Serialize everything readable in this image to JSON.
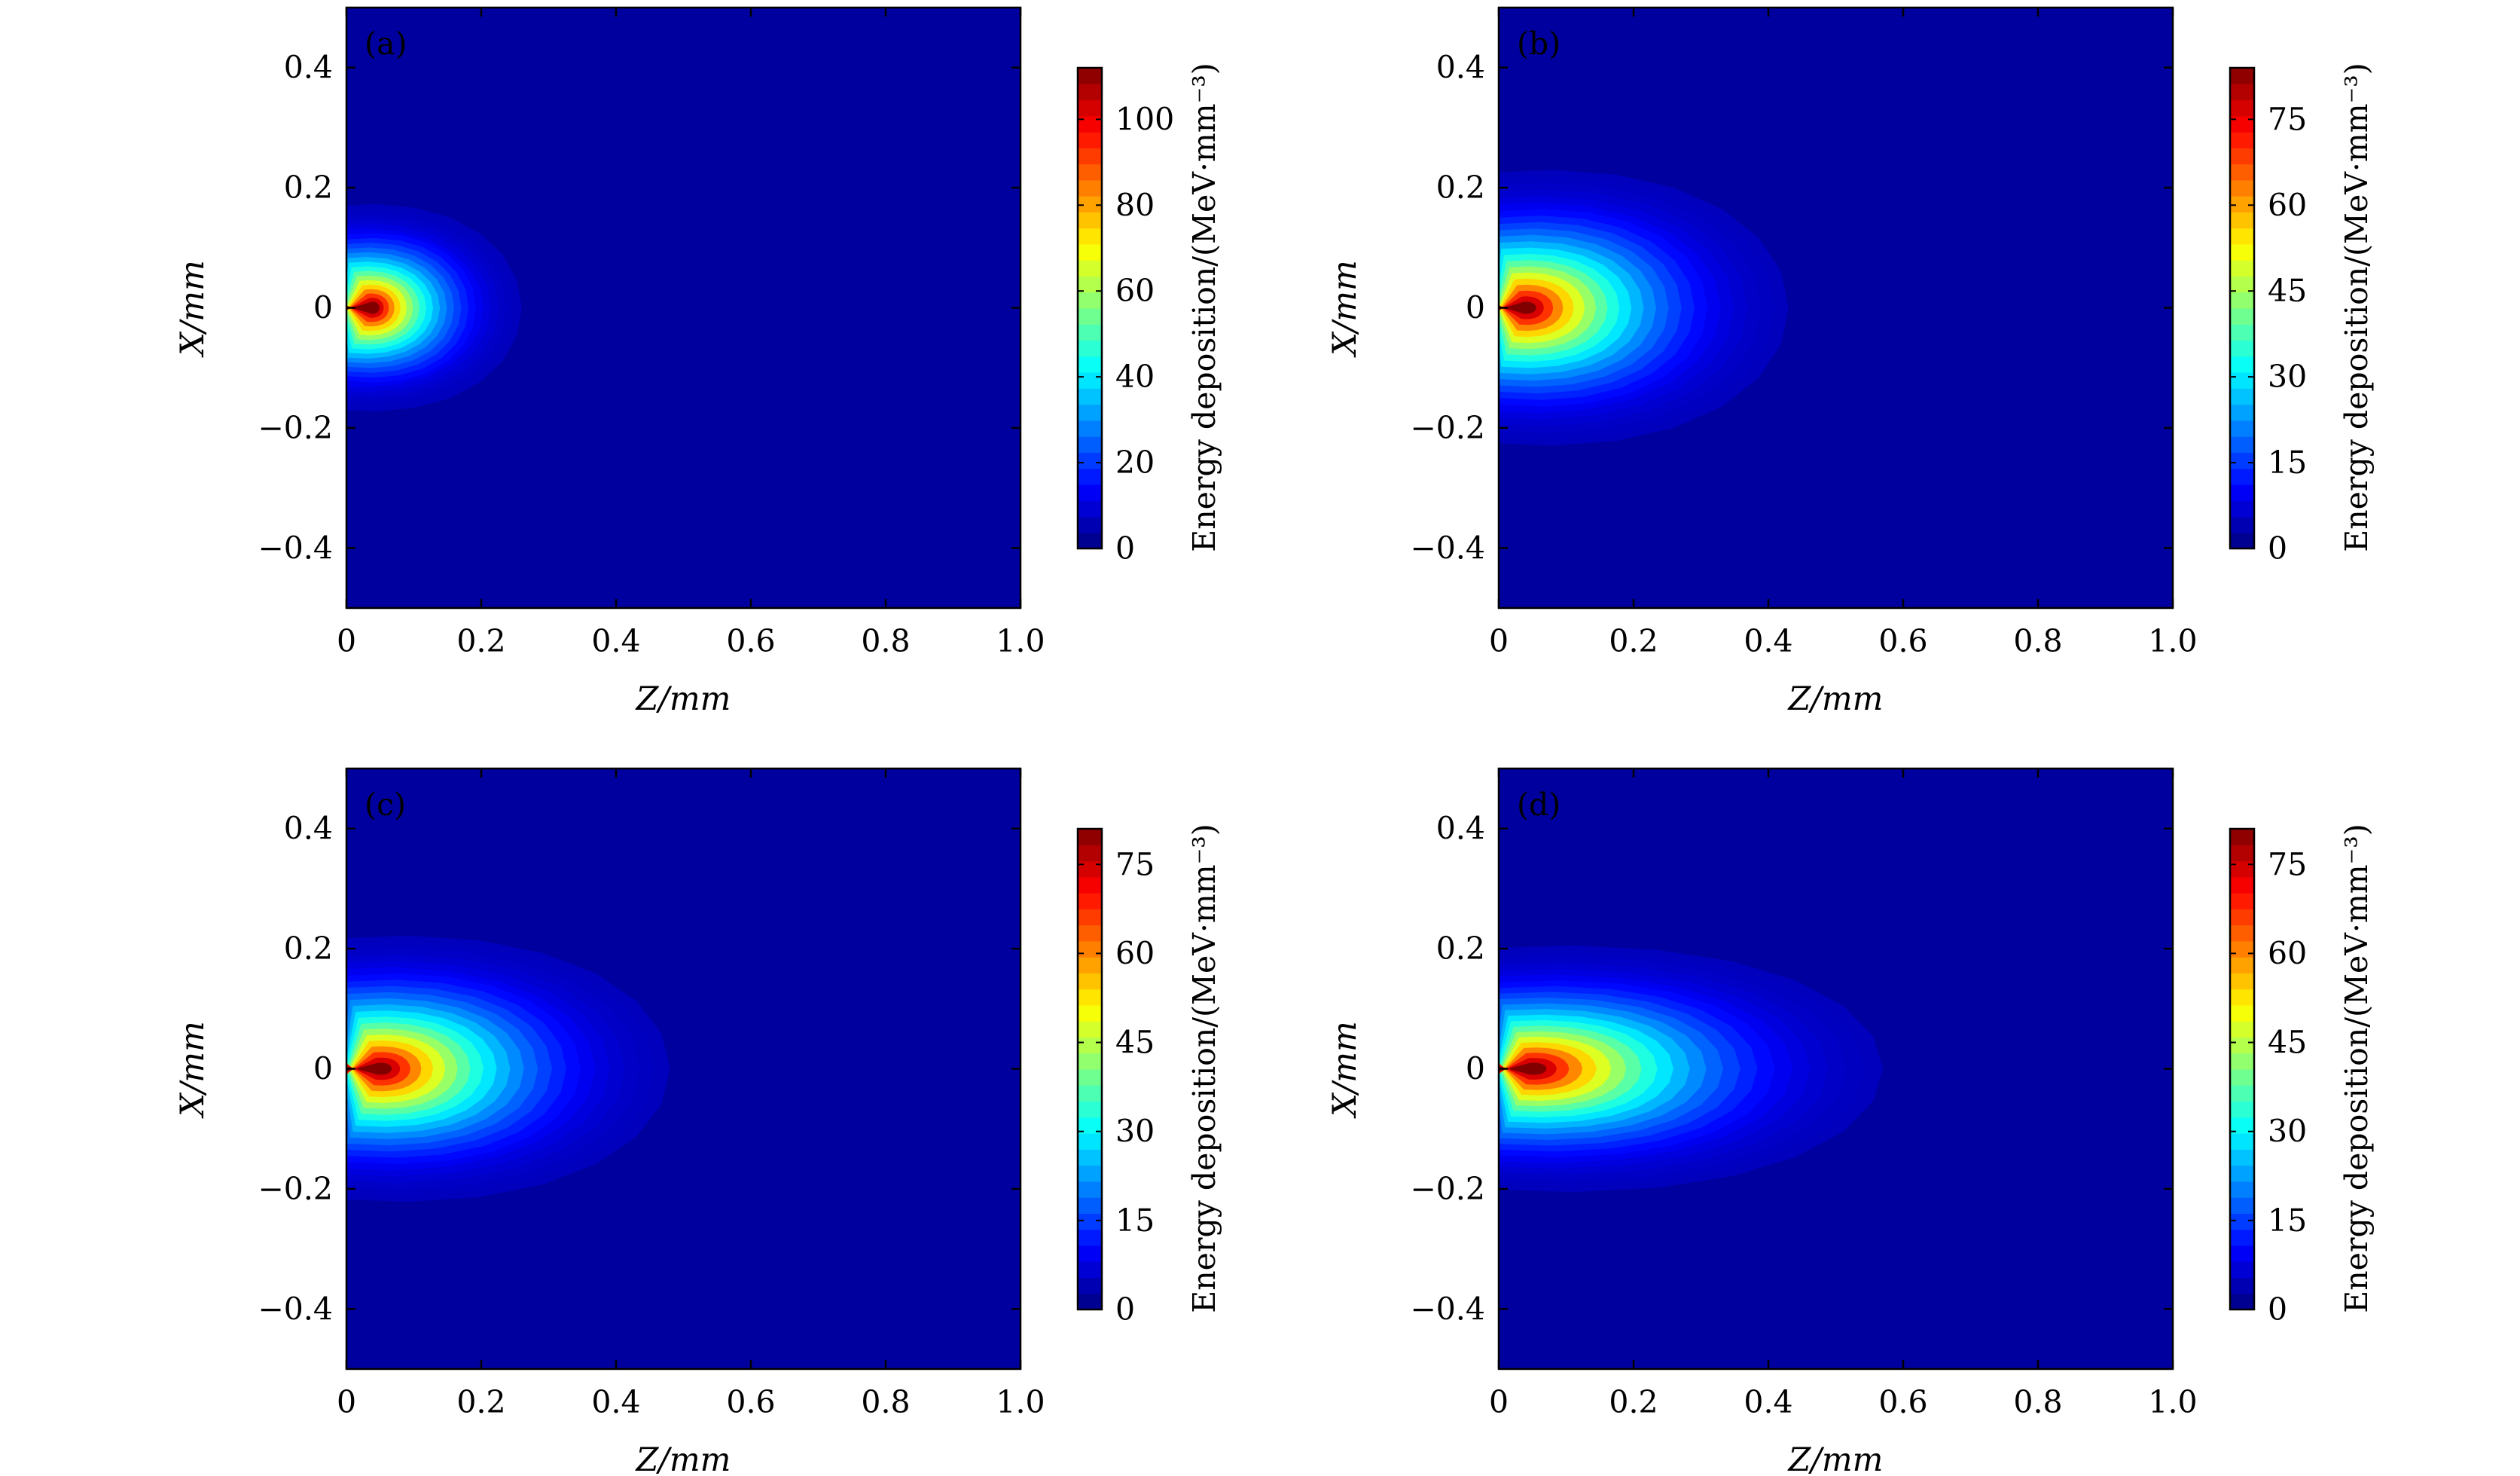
{
  "chart_data": [
    {
      "type": "heatmap",
      "panel_label": "(a)",
      "xlabel": "Z/mm",
      "ylabel": "X/mm",
      "xlim": [
        0,
        1.0
      ],
      "ylim": [
        -0.5,
        0.5
      ],
      "x_ticks": [
        "0",
        "0.2",
        "0.4",
        "0.6",
        "0.8",
        "1.0"
      ],
      "y_ticks": [
        "0.4",
        "0.2",
        "0",
        "−0.2",
        "−0.4"
      ],
      "colorbar": {
        "label": "Energy deposition/(MeV·mm⁻³)",
        "min": 0,
        "max": 112,
        "ticks": [
          "0",
          "20",
          "40",
          "60",
          "80",
          "100"
        ]
      },
      "deposition": {
        "peak_value": 112,
        "peak_z": 0.04,
        "z_extent": 0.26,
        "x_halfwidth": 0.2
      }
    },
    {
      "type": "heatmap",
      "panel_label": "(b)",
      "xlabel": "Z/mm",
      "ylabel": "X/mm",
      "xlim": [
        0,
        1.0
      ],
      "ylim": [
        -0.5,
        0.5
      ],
      "x_ticks": [
        "0",
        "0.2",
        "0.4",
        "0.6",
        "0.8",
        "1.0"
      ],
      "y_ticks": [
        "0.4",
        "0.2",
        "0",
        "−0.2",
        "−0.4"
      ],
      "colorbar": {
        "label": "Energy deposition/(MeV·mm⁻³)",
        "min": 0,
        "max": 84,
        "ticks": [
          "0",
          "15",
          "30",
          "45",
          "60",
          "75"
        ]
      },
      "deposition": {
        "peak_value": 84,
        "peak_z": 0.04,
        "z_extent": 0.43,
        "x_halfwidth": 0.27
      }
    },
    {
      "type": "heatmap",
      "panel_label": "(c)",
      "xlabel": "Z/mm",
      "ylabel": "X/mm",
      "xlim": [
        0,
        1.0
      ],
      "ylim": [
        -0.5,
        0.5
      ],
      "x_ticks": [
        "0",
        "0.2",
        "0.4",
        "0.6",
        "0.8",
        "1.0"
      ],
      "y_ticks": [
        "0.4",
        "0.2",
        "0",
        "−0.2",
        "−0.4"
      ],
      "colorbar": {
        "label": "Energy deposition/(MeV·mm⁻³)",
        "min": 0,
        "max": 81,
        "ticks": [
          "0",
          "15",
          "30",
          "45",
          "60",
          "75"
        ]
      },
      "deposition": {
        "peak_value": 81,
        "peak_z": 0.05,
        "z_extent": 0.48,
        "x_halfwidth": 0.26
      }
    },
    {
      "type": "heatmap",
      "panel_label": "(d)",
      "xlabel": "Z/mm",
      "ylabel": "X/mm",
      "xlim": [
        0,
        1.0
      ],
      "ylim": [
        -0.5,
        0.5
      ],
      "x_ticks": [
        "0",
        "0.2",
        "0.4",
        "0.6",
        "0.8",
        "1.0"
      ],
      "y_ticks": [
        "0.4",
        "0.2",
        "0",
        "−0.2",
        "−0.4"
      ],
      "colorbar": {
        "label": "Energy deposition/(MeV·mm⁻³)",
        "min": 0,
        "max": 81,
        "ticks": [
          "0",
          "15",
          "30",
          "45",
          "60",
          "75"
        ]
      },
      "deposition": {
        "peak_value": 81,
        "peak_z": 0.05,
        "z_extent": 0.57,
        "x_halfwidth": 0.24
      }
    }
  ]
}
